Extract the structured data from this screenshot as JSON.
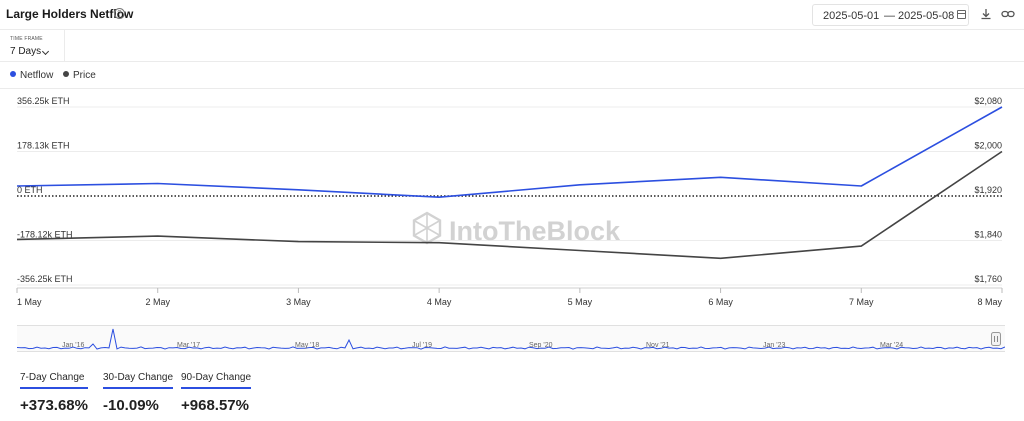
{
  "header": {
    "title": "Large Holders Netflow",
    "help_icon": "question-circle-icon",
    "date_start": "2025-05-01",
    "date_sep": "—",
    "date_end": "2025-05-08",
    "calendar_icon": "calendar-icon",
    "download_icon": "download-icon",
    "link_icon": "link-icon"
  },
  "timeframe": {
    "label": "TIME FRAME",
    "value": "7 Days"
  },
  "legend": [
    {
      "name": "Netflow",
      "color": "#2c4fe0"
    },
    {
      "name": "Price",
      "color": "#444444"
    }
  ],
  "watermark": "IntoTheBlock",
  "chart_data": {
    "type": "line",
    "x": [
      "1 May",
      "2 May",
      "3 May",
      "4 May",
      "5 May",
      "6 May",
      "7 May",
      "8 May"
    ],
    "series": [
      {
        "name": "Netflow",
        "axis": "left",
        "color": "#2c4fe0",
        "values": [
          40000,
          50000,
          25000,
          -5000,
          45000,
          75000,
          40000,
          356250
        ]
      },
      {
        "name": "Price",
        "axis": "right",
        "color": "#444444",
        "values": [
          1842,
          1848,
          1838,
          1836,
          1822,
          1808,
          1830,
          2000
        ]
      }
    ],
    "y_left": {
      "ticks": [
        "356.25k ETH",
        "178.13k ETH",
        "0 ETH",
        "-178.12k ETH",
        "-356.25k ETH"
      ],
      "range": [
        -356250,
        356250
      ]
    },
    "y_right": {
      "ticks": [
        "$2,080",
        "$2,000",
        "$1,920",
        "$1,840",
        "$1,760"
      ],
      "range": [
        1760,
        2080
      ]
    },
    "zero_line": "dotted",
    "grid": true
  },
  "navigator": {
    "labels": [
      "Jan '16",
      "Mar '17",
      "May '18",
      "Jul '19",
      "Sep '20",
      "Nov '21",
      "Jan '23",
      "Mar '24"
    ]
  },
  "stats": [
    {
      "label": "7-Day Change",
      "value": "+373.68%"
    },
    {
      "label": "30-Day Change",
      "value": "-10.09%"
    },
    {
      "label": "90-Day Change",
      "value": "+968.57%"
    }
  ]
}
